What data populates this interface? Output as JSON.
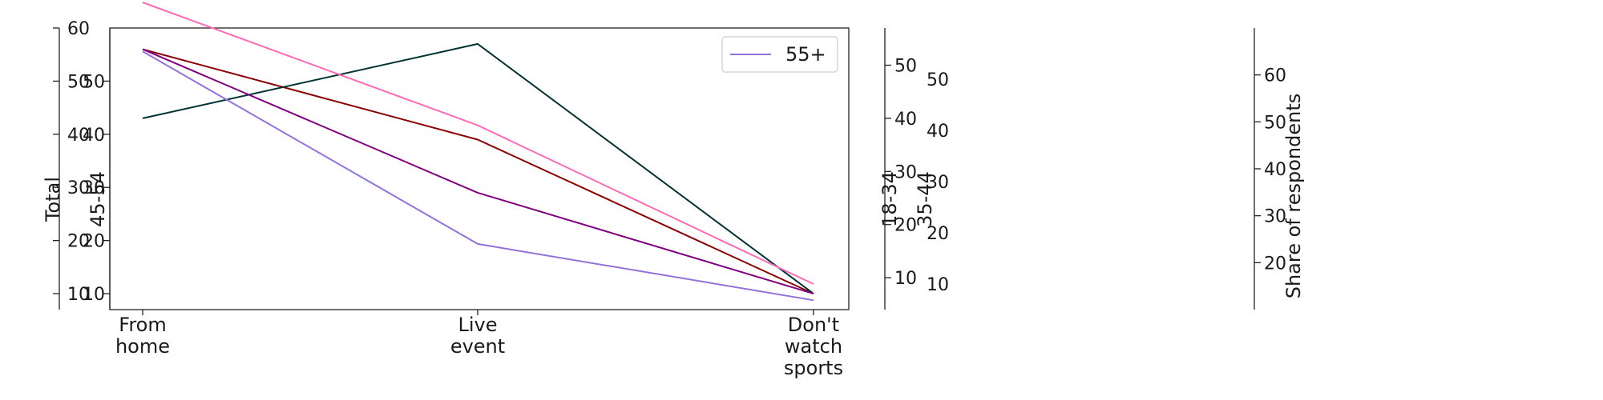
{
  "chart_data": {
    "type": "line",
    "title": "",
    "xlabel": "",
    "categories": [
      "From\nhome",
      "Live\nevent",
      "Don't\nwatch\nsports"
    ],
    "series": [
      {
        "name": "Total",
        "axis": "total",
        "color": "#8b0000",
        "values": [
          56,
          39,
          10
        ]
      },
      {
        "name": "18-34",
        "axis": "a1834",
        "color": "#003333",
        "values": [
          40,
          54,
          7
        ]
      },
      {
        "name": "35-44",
        "axis": "a3544",
        "color": "#ff69b4",
        "values": [
          65,
          41,
          10
        ]
      },
      {
        "name": "45-54",
        "axis": "a4554",
        "color": "#800080",
        "values": [
          56,
          29,
          10
        ]
      },
      {
        "name": "55+",
        "axis": "share",
        "color": "#9370db",
        "values": [
          65,
          24,
          12
        ]
      }
    ],
    "axes": {
      "total": {
        "label": "Total",
        "ylim": [
          7,
          60
        ],
        "ticks": [
          10,
          20,
          30,
          40,
          50,
          60
        ]
      },
      "a4554": {
        "label": "45-54",
        "ylim": [
          7,
          60
        ],
        "ticks": [
          10,
          20,
          30,
          40,
          50
        ]
      },
      "a1834": {
        "label": "18-34",
        "ylim": [
          4,
          57
        ],
        "ticks": [
          10,
          20,
          30,
          40,
          50
        ]
      },
      "a3544": {
        "label": "35-44",
        "ylim": [
          5,
          60
        ],
        "ticks": [
          10,
          20,
          30,
          40,
          50
        ]
      },
      "share": {
        "label": "Share of respondents",
        "ylim": [
          10,
          70
        ],
        "ticks": [
          20,
          30,
          40,
          50,
          60
        ]
      }
    },
    "legend": {
      "entries": [
        "55+"
      ],
      "placement": "top-right"
    }
  }
}
